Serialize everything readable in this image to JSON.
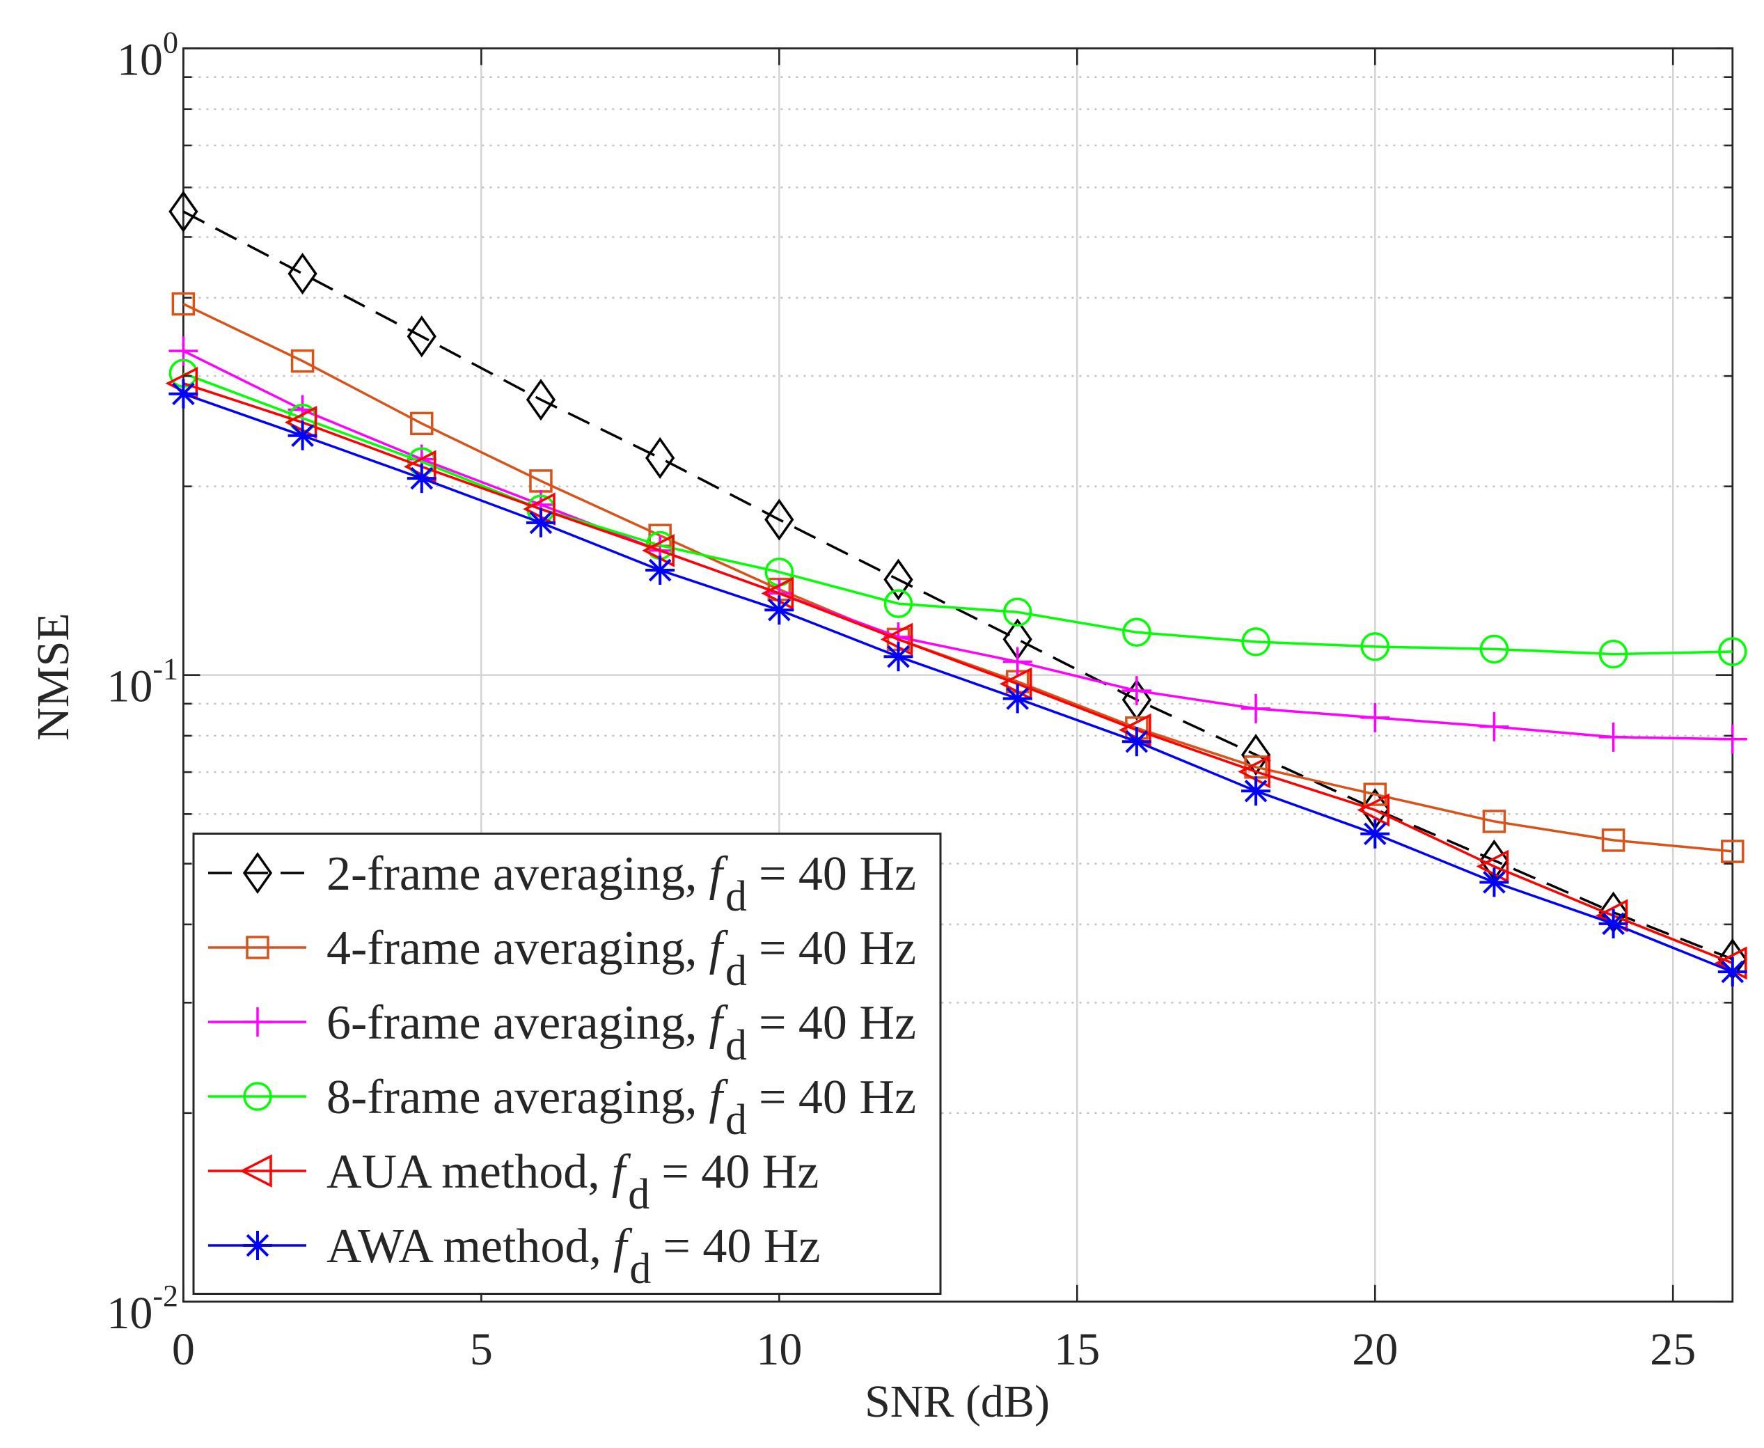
{
  "chart_data": {
    "type": "line",
    "title": "",
    "xlabel": "SNR (dB)",
    "ylabel": "NMSE",
    "xlim": [
      0,
      26
    ],
    "ylim": [
      0.01,
      1
    ],
    "log_y": true,
    "grid": true,
    "legend_location": "lower-left",
    "x_ticks": [
      0,
      5,
      10,
      15,
      20,
      25
    ],
    "x_tick_labels": [
      "0",
      "5",
      "10",
      "15",
      "20",
      "25"
    ],
    "y_ticks": [
      1,
      0.1,
      0.01
    ],
    "y_tick_labels": [
      {
        "base": "10",
        "exp": "0"
      },
      {
        "base": "10",
        "exp": "-1"
      },
      {
        "base": "10",
        "exp": "-2"
      }
    ],
    "x": [
      0,
      2,
      4,
      6,
      8,
      10,
      12,
      14,
      16,
      18,
      20,
      22,
      24,
      26
    ],
    "series": [
      {
        "name": "2-frame averaging,",
        "label_var": "f",
        "label_sub": "d",
        "label_post": "= 40 Hz",
        "color": "#000000",
        "dashed": true,
        "marker": "diamond",
        "values": [
          0.549,
          0.437,
          0.347,
          0.275,
          0.222,
          0.177,
          0.142,
          0.114,
          0.0913,
          0.0746,
          0.0611,
          0.0506,
          0.0418,
          0.0352
        ]
      },
      {
        "name": "4-frame averaging,",
        "label_var": "f",
        "label_sub": "d",
        "label_post": "= 40 Hz",
        "color": "#D95319",
        "dashed": false,
        "marker": "square",
        "values": [
          0.391,
          0.317,
          0.252,
          0.204,
          0.167,
          0.137,
          0.114,
          0.0976,
          0.0823,
          0.0713,
          0.0645,
          0.0584,
          0.0545,
          0.0523
        ]
      },
      {
        "name": "6-frame averaging,",
        "label_var": "f",
        "label_sub": "d",
        "label_post": "= 40 Hz",
        "color": "#FF00FF",
        "dashed": false,
        "marker": "plus",
        "values": [
          0.329,
          0.265,
          0.221,
          0.187,
          0.158,
          0.135,
          0.115,
          0.105,
          0.0944,
          0.0884,
          0.0855,
          0.0827,
          0.0796,
          0.079
        ]
      },
      {
        "name": "8-frame averaging,",
        "label_var": "f",
        "label_sub": "d",
        "label_post": "= 40 Hz",
        "color": "#00FF00",
        "dashed": false,
        "marker": "circle",
        "values": [
          0.303,
          0.257,
          0.219,
          0.184,
          0.161,
          0.146,
          0.13,
          0.126,
          0.117,
          0.113,
          0.111,
          0.11,
          0.108,
          0.109
        ]
      },
      {
        "name": "AUA method,",
        "label_var": "f",
        "label_sub": "d",
        "label_post": "= 40 Hz",
        "color": "#FF0000",
        "dashed": false,
        "marker": "triangle-left",
        "values": [
          0.292,
          0.253,
          0.215,
          0.184,
          0.158,
          0.135,
          0.114,
          0.0968,
          0.0817,
          0.0701,
          0.0609,
          0.0495,
          0.0413,
          0.0347
        ]
      },
      {
        "name": "AWA method,",
        "label_var": "f",
        "label_sub": "d",
        "label_post": "= 40 Hz",
        "color": "#0000FF",
        "dashed": false,
        "marker": "asterisk",
        "values": [
          0.281,
          0.241,
          0.206,
          0.175,
          0.147,
          0.127,
          0.107,
          0.0917,
          0.0783,
          0.0653,
          0.0558,
          0.0467,
          0.0401,
          0.0336
        ]
      }
    ]
  }
}
